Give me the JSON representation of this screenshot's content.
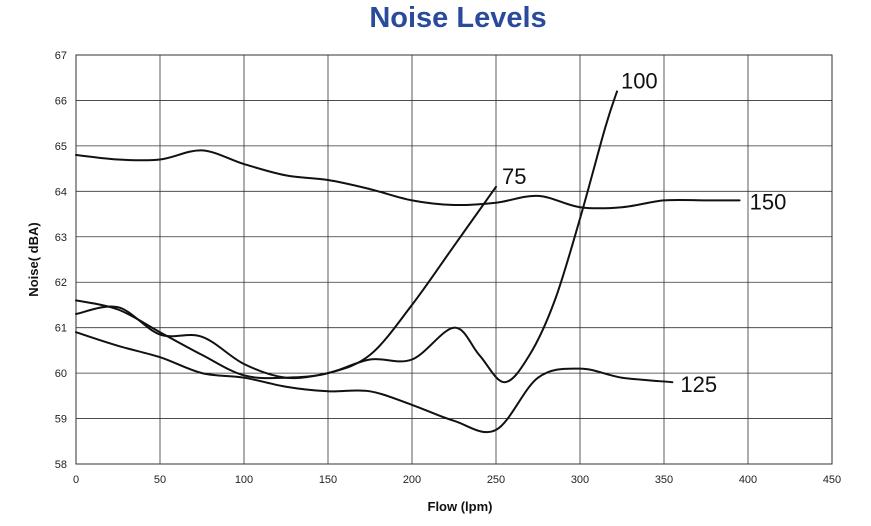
{
  "chart_data": {
    "type": "line",
    "title": "Noise Levels",
    "xlabel": "Flow (lpm)",
    "ylabel": "Noise( dBA)",
    "xlim": [
      0,
      450
    ],
    "ylim": [
      58,
      67
    ],
    "xticks": [
      0,
      50,
      100,
      150,
      200,
      250,
      300,
      350,
      400,
      450
    ],
    "yticks": [
      58,
      59,
      60,
      61,
      62,
      63,
      64,
      65,
      66,
      67
    ],
    "grid": true,
    "legend": "labels at line ends",
    "colors": {
      "title": "#2a4b9b",
      "line": "#111111",
      "grid": "#333333"
    },
    "series": [
      {
        "name": "75",
        "label": "75",
        "x": [
          0,
          25,
          50,
          75,
          100,
          125,
          150,
          175,
          200,
          225,
          250
        ],
        "y": [
          61.6,
          61.4,
          60.9,
          60.4,
          59.95,
          59.9,
          60.0,
          60.4,
          61.5,
          62.8,
          64.1
        ]
      },
      {
        "name": "100",
        "label": "100",
        "x": [
          0,
          25,
          50,
          75,
          100,
          125,
          150,
          175,
          200,
          225,
          240,
          255,
          270,
          285,
          300,
          315,
          322
        ],
        "y": [
          61.3,
          61.45,
          60.85,
          60.8,
          60.2,
          59.9,
          60.0,
          60.3,
          60.3,
          61.0,
          60.4,
          59.8,
          60.4,
          61.6,
          63.4,
          65.4,
          66.2
        ]
      },
      {
        "name": "125",
        "label": "125",
        "x": [
          0,
          25,
          50,
          75,
          100,
          125,
          150,
          175,
          200,
          225,
          250,
          275,
          300,
          325,
          355
        ],
        "y": [
          60.9,
          60.6,
          60.35,
          60.0,
          59.9,
          59.7,
          59.6,
          59.6,
          59.3,
          58.95,
          58.75,
          59.9,
          60.1,
          59.9,
          59.8
        ]
      },
      {
        "name": "150",
        "label": "150",
        "x": [
          0,
          25,
          50,
          75,
          100,
          125,
          150,
          175,
          200,
          225,
          250,
          275,
          300,
          325,
          350,
          375,
          395
        ],
        "y": [
          64.8,
          64.7,
          64.7,
          64.9,
          64.6,
          64.35,
          64.25,
          64.05,
          63.8,
          63.7,
          63.75,
          63.9,
          63.65,
          63.65,
          63.8,
          63.8,
          63.8
        ]
      }
    ]
  }
}
